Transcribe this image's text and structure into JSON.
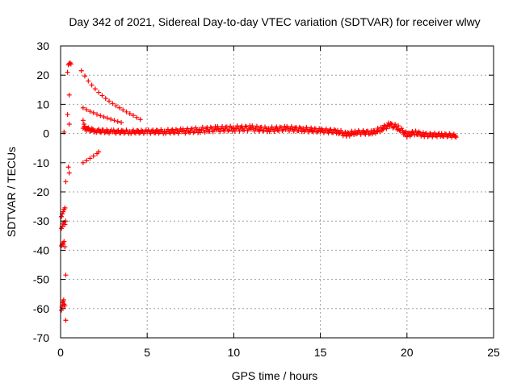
{
  "chart_data": {
    "type": "scatter",
    "title": "Day 342 of 2021, Sidereal Day-to-day VTEC variation (SDTVAR) for receiver wlwy",
    "xlabel": "GPS time / hours",
    "ylabel": "SDTVAR / TECUs",
    "xlim": [
      0,
      25
    ],
    "ylim": [
      -70,
      30
    ],
    "xticks": [
      0,
      5,
      10,
      15,
      20,
      25
    ],
    "yticks": [
      -70,
      -60,
      -50,
      -40,
      -30,
      -20,
      -10,
      0,
      10,
      20,
      30
    ],
    "grid": true,
    "marker": "+",
    "series": [
      {
        "name": "SDTVAR",
        "color": "#ff0000",
        "points": [
          [
            0.05,
            -60.5
          ],
          [
            0.08,
            -59.5
          ],
          [
            0.1,
            -58.8
          ],
          [
            0.12,
            -58.0
          ],
          [
            0.15,
            -57.5
          ],
          [
            0.18,
            -57.0
          ],
          [
            0.2,
            -58.5
          ],
          [
            0.25,
            -59.0
          ],
          [
            0.05,
            -38.5
          ],
          [
            0.1,
            -38.0
          ],
          [
            0.15,
            -37.5
          ],
          [
            0.2,
            -37.0
          ],
          [
            0.25,
            -38.8
          ],
          [
            0.05,
            -32.5
          ],
          [
            0.1,
            -31.8
          ],
          [
            0.15,
            -31.0
          ],
          [
            0.2,
            -30.5
          ],
          [
            0.25,
            -31.2
          ],
          [
            0.3,
            -30.0
          ],
          [
            0.05,
            -28.5
          ],
          [
            0.1,
            -27.5
          ],
          [
            0.15,
            -26.8
          ],
          [
            0.2,
            -26.0
          ],
          [
            0.25,
            -25.5
          ],
          [
            0.3,
            -48.5
          ],
          [
            0.3,
            -64.0
          ],
          [
            0.3,
            -16.5
          ],
          [
            0.2,
            0.5
          ],
          [
            0.45,
            -11.5
          ],
          [
            0.5,
            -13.5
          ],
          [
            0.4,
            6.5
          ],
          [
            0.5,
            3.2
          ],
          [
            0.5,
            13.2
          ],
          [
            0.4,
            21.0
          ],
          [
            0.45,
            23.5
          ],
          [
            0.5,
            24.0
          ],
          [
            0.55,
            24.2
          ],
          [
            0.6,
            23.8
          ],
          [
            1.2,
            21.5
          ],
          [
            1.4,
            19.7
          ],
          [
            1.6,
            18.0
          ],
          [
            1.8,
            16.6
          ],
          [
            2.0,
            15.3
          ],
          [
            2.2,
            14.1
          ],
          [
            2.4,
            13.0
          ],
          [
            2.6,
            12.0
          ],
          [
            2.8,
            11.1
          ],
          [
            3.0,
            10.3
          ],
          [
            3.2,
            9.5
          ],
          [
            3.4,
            8.8
          ],
          [
            3.6,
            8.1
          ],
          [
            3.8,
            7.4
          ],
          [
            4.0,
            6.8
          ],
          [
            4.2,
            6.2
          ],
          [
            4.4,
            5.5
          ],
          [
            4.6,
            4.8
          ],
          [
            1.3,
            8.8
          ],
          [
            1.5,
            8.2
          ],
          [
            1.7,
            7.6
          ],
          [
            1.9,
            7.1
          ],
          [
            2.1,
            6.6
          ],
          [
            2.3,
            6.1
          ],
          [
            2.5,
            5.7
          ],
          [
            2.7,
            5.3
          ],
          [
            2.9,
            4.9
          ],
          [
            3.1,
            4.5
          ],
          [
            3.3,
            4.1
          ],
          [
            3.5,
            3.8
          ],
          [
            1.3,
            -10.0
          ],
          [
            1.5,
            -9.3
          ],
          [
            1.7,
            -8.5
          ],
          [
            1.9,
            -7.7
          ],
          [
            2.1,
            -6.9
          ],
          [
            2.2,
            -6.3
          ],
          [
            1.3,
            4.5
          ],
          [
            1.35,
            3.2
          ],
          [
            1.4,
            2.4
          ],
          [
            1.5,
            1.8
          ],
          [
            1.6,
            1.4
          ],
          [
            1.8,
            1.1
          ],
          [
            2.0,
            0.9
          ],
          [
            2.3,
            0.6
          ],
          [
            2.7,
            0.5
          ],
          [
            3.1,
            0.6
          ],
          [
            3.5,
            0.7
          ],
          [
            4.0,
            0.6
          ],
          [
            4.5,
            0.7
          ],
          [
            5.0,
            0.6
          ],
          [
            5.5,
            0.7
          ],
          [
            6.0,
            0.6
          ],
          [
            6.5,
            0.8
          ],
          [
            7.0,
            0.7
          ],
          [
            7.5,
            0.9
          ],
          [
            8.0,
            1.2
          ],
          [
            8.5,
            1.3
          ],
          [
            9.0,
            1.5
          ],
          [
            9.5,
            1.6
          ],
          [
            10.0,
            1.7
          ],
          [
            10.5,
            1.8
          ],
          [
            11.0,
            1.9
          ],
          [
            11.5,
            1.2
          ],
          [
            12.0,
            1.3
          ],
          [
            12.5,
            1.6
          ],
          [
            13.0,
            1.8
          ],
          [
            13.5,
            1.5
          ],
          [
            14.0,
            1.3
          ],
          [
            14.5,
            1.1
          ],
          [
            15.0,
            1.0
          ],
          [
            15.5,
            0.8
          ],
          [
            16.0,
            0.6
          ],
          [
            16.5,
            -0.6
          ],
          [
            16.8,
            -0.2
          ],
          [
            17.0,
            0.4
          ],
          [
            17.5,
            0.5
          ],
          [
            18.0,
            0.2
          ],
          [
            18.3,
            0.6
          ],
          [
            18.6,
            1.8
          ],
          [
            18.9,
            2.9
          ],
          [
            19.1,
            3.2
          ],
          [
            19.3,
            2.6
          ],
          [
            19.5,
            1.5
          ],
          [
            19.8,
            0.3
          ],
          [
            20.0,
            -0.8
          ],
          [
            20.3,
            0.5
          ],
          [
            20.6,
            0.2
          ],
          [
            21.0,
            -0.6
          ],
          [
            21.5,
            -0.4
          ],
          [
            22.0,
            -0.6
          ],
          [
            22.5,
            -0.5
          ],
          [
            22.8,
            -0.8
          ]
        ],
        "bands": [
          {
            "x": [
              1.3,
              2.0,
              3.0,
              4.0,
              5.0,
              6.0,
              7.0,
              8.0,
              9.0,
              10.0,
              11.0,
              12.0,
              13.0,
              14.0,
              15.0,
              16.0,
              16.5,
              17.0,
              18.0,
              18.5,
              19.0,
              19.5,
              20.0,
              20.5,
              21.0,
              22.0,
              22.9
            ],
            "y": [
              1.8,
              1.0,
              0.6,
              0.6,
              0.6,
              0.7,
              0.8,
              1.2,
              1.5,
              1.7,
              1.8,
              1.4,
              1.7,
              1.4,
              1.0,
              0.7,
              -0.4,
              0.4,
              0.3,
              1.5,
              3.0,
              2.0,
              -0.5,
              0.3,
              -0.5,
              -0.5,
              -0.8
            ],
            "half_width": [
              0.7,
              0.6,
              0.6,
              0.6,
              0.6,
              0.7,
              0.8,
              0.9,
              0.9,
              0.9,
              0.9,
              0.8,
              0.8,
              0.8,
              0.7,
              0.7,
              0.8,
              0.7,
              0.7,
              0.8,
              0.8,
              0.8,
              0.8,
              0.7,
              0.7,
              0.6,
              0.6
            ]
          }
        ]
      }
    ]
  }
}
